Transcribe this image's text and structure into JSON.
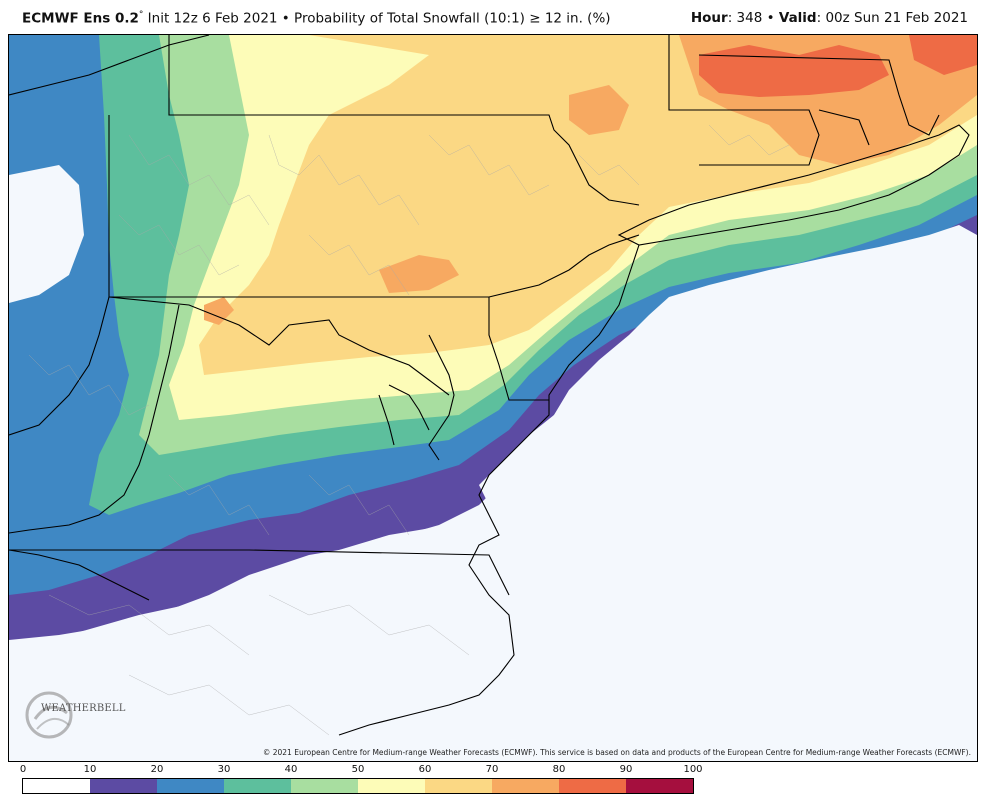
{
  "header": {
    "model": "ECMWF Ens 0.2",
    "degree": "°",
    "init": " Init 12z 6 Feb 2021 • Probability of Total Snowfall (10:1) ≥ 12 in. (%)",
    "hour_label": "Hour",
    "hour_value": ": 348 • ",
    "valid_label": "Valid",
    "valid_value": ": 00z Sun 21 Feb 2021"
  },
  "copyright": "© 2021 European Centre for Medium-range Weather Forecasts (ECMWF). This service is based on data and products of the European Centre for Medium-range Weather Forecasts (ECMWF).",
  "logo": {
    "text": "WEATHERBELL"
  },
  "colorbar": {
    "ticks": [
      "0",
      "10",
      "20",
      "30",
      "40",
      "50",
      "60",
      "70",
      "80",
      "90",
      "100"
    ],
    "colors": [
      "#ffffff",
      "#5c4ba3",
      "#3f88c4",
      "#5dbf9d",
      "#a8dea0",
      "#fdfcb8",
      "#fbd884",
      "#f7a961",
      "#ee6b45",
      "#a50f3e"
    ]
  },
  "map_colors": {
    "ocean": "#f4f8fd",
    "land_none": "#f4f8fd",
    "p10": "#5c4ba3",
    "p20": "#3f88c4",
    "p30": "#5dbf9d",
    "p40": "#a8dea0",
    "p50": "#fdfcb8",
    "p60": "#fbd884",
    "p70": "#f7a961",
    "p80": "#ee6b45",
    "boundary": "#000000",
    "county": "#a8a8a8"
  }
}
